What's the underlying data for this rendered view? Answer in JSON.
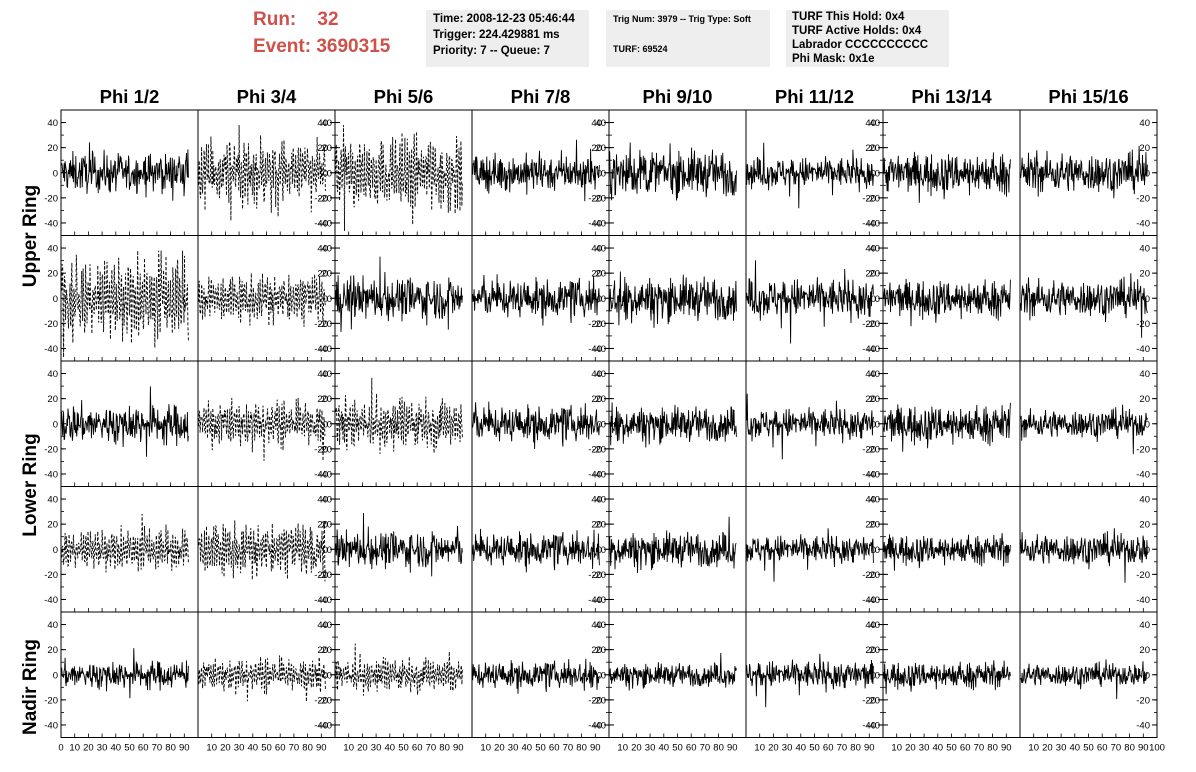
{
  "header": {
    "run_label": "Run:",
    "run_value": "32",
    "event_label": "Event:",
    "event_value": "3690315",
    "time": "Time: 2008-12-23 05:46:44",
    "trigger": "Trigger: 224.429881 ms",
    "priority": "Priority: 7 -- Queue: 7",
    "trig_num": "Trig Num: 3979 -- Trig Type: Soft",
    "turf": "TURF: 69524",
    "turf_this_hold": "TURF This Hold: 0x4",
    "turf_active_holds": "TURF Active Holds: 0x4",
    "labrador": "Labrador CCCCCCCCCC",
    "phi_mask": "Phi Mask: 0x1e"
  },
  "columns": [
    "Phi 1/2",
    "Phi 3/4",
    "Phi 5/6",
    "Phi 7/8",
    "Phi 9/10",
    "Phi 11/12",
    "Phi 13/14",
    "Phi 15/16"
  ],
  "ring_labels": [
    "Upper Ring",
    "Lower Ring",
    "Nadir Ring"
  ],
  "chart_data": {
    "type": "line",
    "layout": "small-multiples 5 rows x 8 columns",
    "xlim": [
      0,
      100
    ],
    "ylim": [
      -50,
      50
    ],
    "x_ticks": [
      0,
      10,
      20,
      30,
      40,
      50,
      60,
      70,
      80,
      90,
      100
    ],
    "y_ticks": [
      -40,
      -20,
      0,
      20,
      40
    ],
    "y_axis_side": "left on odd columns, right on even columns",
    "dashed_panels": [
      [
        0,
        1
      ],
      [
        0,
        2
      ],
      [
        1,
        0
      ],
      [
        1,
        1
      ],
      [
        2,
        1
      ],
      [
        2,
        2
      ],
      [
        3,
        0
      ],
      [
        3,
        1
      ],
      [
        4,
        1
      ],
      [
        4,
        2
      ]
    ],
    "waveform": "noise waveforms, approx amplitude range -45 to 35 in each panel",
    "panel_amplitudes": [
      [
        14,
        16,
        18,
        13,
        16,
        11,
        14,
        14
      ],
      [
        20,
        11,
        15,
        13,
        15,
        14,
        13,
        13
      ],
      [
        14,
        11,
        12,
        12,
        12,
        11,
        13,
        10
      ],
      [
        10,
        12,
        13,
        11,
        12,
        10,
        10,
        11
      ],
      [
        10,
        8,
        8,
        9,
        8,
        10,
        9,
        8
      ]
    ]
  }
}
